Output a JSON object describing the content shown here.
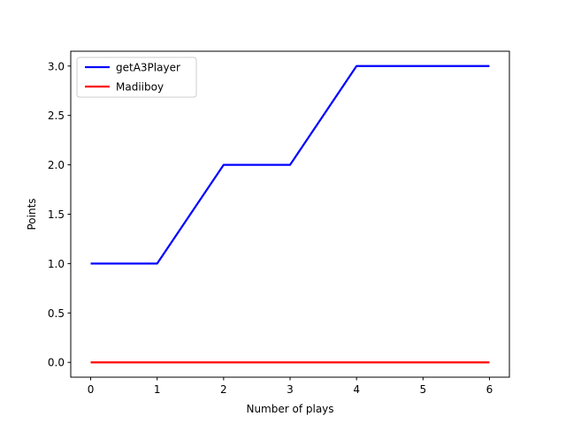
{
  "chart_data": {
    "type": "line",
    "title": "",
    "xlabel": "Number of plays",
    "ylabel": "Points",
    "x": [
      0,
      1,
      2,
      3,
      4,
      5,
      6
    ],
    "xlim": [
      -0.3,
      6.3
    ],
    "ylim": [
      -0.15,
      3.15
    ],
    "xticks": [
      "0",
      "1",
      "2",
      "3",
      "4",
      "5",
      "6"
    ],
    "yticks": [
      "0.0",
      "0.5",
      "1.0",
      "1.5",
      "2.0",
      "2.5",
      "3.0"
    ],
    "grid": false,
    "legend_position": "top-left",
    "series": [
      {
        "name": "getA3Player",
        "color": "#0000ff",
        "values": [
          1,
          1,
          2,
          2,
          3,
          3,
          3
        ]
      },
      {
        "name": "Madiiboy",
        "color": "#ff0000",
        "values": [
          0,
          0,
          0,
          0,
          0,
          0,
          0
        ]
      }
    ]
  }
}
